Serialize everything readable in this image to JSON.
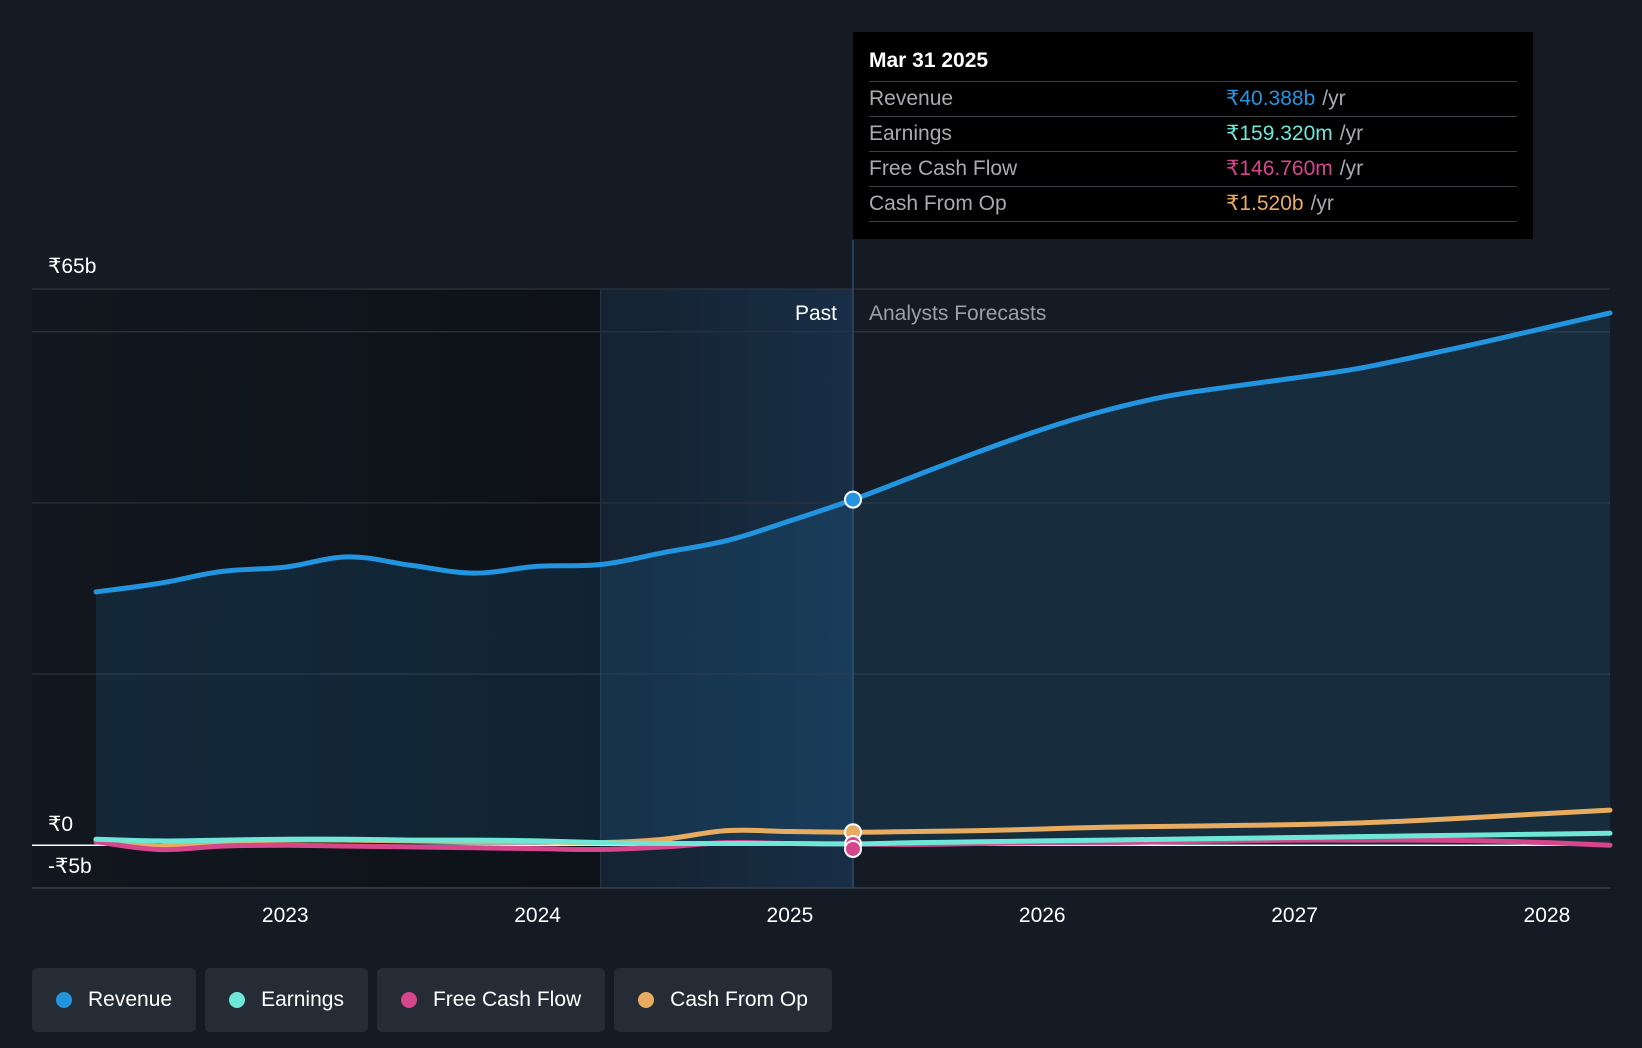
{
  "chart_data": {
    "type": "line",
    "y_axis": {
      "min": -5,
      "max": 65,
      "unit": "₹b",
      "top_label": "₹65b",
      "zero_label": "₹0",
      "bottom_label": "-₹5b"
    },
    "x_axis": {
      "min": 2022.25,
      "max": 2028.25,
      "ticks": [
        "2023",
        "2024",
        "2025",
        "2026",
        "2027",
        "2028"
      ]
    },
    "regions": {
      "past_label": "Past",
      "forecast_label": "Analysts Forecasts",
      "divider_x": 2025.25,
      "highlight_start_x": 2024.25
    },
    "series": [
      {
        "name": "Revenue",
        "color": "#2394df",
        "points": [
          [
            2022.25,
            29.6
          ],
          [
            2022.5,
            30.6
          ],
          [
            2022.75,
            32.0
          ],
          [
            2023.0,
            32.5
          ],
          [
            2023.25,
            33.7
          ],
          [
            2023.5,
            32.7
          ],
          [
            2023.75,
            31.8
          ],
          [
            2024.0,
            32.6
          ],
          [
            2024.25,
            32.8
          ],
          [
            2024.5,
            34.2
          ],
          [
            2024.75,
            35.6
          ],
          [
            2025.0,
            37.9
          ],
          [
            2025.25,
            40.388
          ],
          [
            2025.5,
            43.2
          ],
          [
            2025.75,
            46.0
          ],
          [
            2026.0,
            48.6
          ],
          [
            2026.25,
            50.8
          ],
          [
            2026.5,
            52.5
          ],
          [
            2026.75,
            53.6
          ],
          [
            2027.0,
            54.6
          ],
          [
            2027.25,
            55.7
          ],
          [
            2027.5,
            57.2
          ],
          [
            2027.75,
            58.8
          ],
          [
            2028.0,
            60.5
          ],
          [
            2028.25,
            62.2
          ]
        ]
      },
      {
        "name": "Earnings",
        "color": "#6ee7d8",
        "points": [
          [
            2022.25,
            0.7
          ],
          [
            2022.5,
            0.5
          ],
          [
            2022.75,
            0.6
          ],
          [
            2023.0,
            0.7
          ],
          [
            2023.25,
            0.7
          ],
          [
            2023.5,
            0.6
          ],
          [
            2023.75,
            0.6
          ],
          [
            2024.0,
            0.5
          ],
          [
            2024.25,
            0.3
          ],
          [
            2024.5,
            0.2
          ],
          [
            2024.75,
            0.2
          ],
          [
            2025.0,
            0.2
          ],
          [
            2025.25,
            0.159
          ],
          [
            2025.5,
            0.3
          ],
          [
            2025.75,
            0.4
          ],
          [
            2026.0,
            0.5
          ],
          [
            2026.25,
            0.6
          ],
          [
            2026.5,
            0.7
          ],
          [
            2026.75,
            0.8
          ],
          [
            2027.0,
            0.9
          ],
          [
            2027.25,
            1.0
          ],
          [
            2027.5,
            1.1
          ],
          [
            2027.75,
            1.2
          ],
          [
            2028.0,
            1.3
          ],
          [
            2028.25,
            1.4
          ]
        ]
      },
      {
        "name": "Free Cash Flow",
        "color": "#d6468d",
        "points": [
          [
            2022.25,
            0.4
          ],
          [
            2022.5,
            -0.5
          ],
          [
            2022.75,
            -0.1
          ],
          [
            2023.0,
            0.0
          ],
          [
            2023.25,
            -0.1
          ],
          [
            2023.5,
            -0.2
          ],
          [
            2023.75,
            -0.3
          ],
          [
            2024.0,
            -0.4
          ],
          [
            2024.25,
            -0.5
          ],
          [
            2024.5,
            -0.2
          ],
          [
            2024.75,
            0.3
          ],
          [
            2025.0,
            0.2
          ],
          [
            2025.25,
            0.147
          ],
          [
            2025.5,
            0.1
          ],
          [
            2025.75,
            0.2
          ],
          [
            2026.0,
            0.3
          ],
          [
            2026.25,
            0.3
          ],
          [
            2026.5,
            0.4
          ],
          [
            2026.75,
            0.5
          ],
          [
            2027.0,
            0.6
          ],
          [
            2027.25,
            0.6
          ],
          [
            2027.5,
            0.6
          ],
          [
            2027.75,
            0.5
          ],
          [
            2028.0,
            0.3
          ],
          [
            2028.25,
            0.0
          ]
        ]
      },
      {
        "name": "Cash From Op",
        "color": "#e8ac60",
        "points": [
          [
            2022.25,
            0.6
          ],
          [
            2022.5,
            -0.1
          ],
          [
            2022.75,
            0.4
          ],
          [
            2023.0,
            0.6
          ],
          [
            2023.25,
            0.6
          ],
          [
            2023.5,
            0.5
          ],
          [
            2023.75,
            0.4
          ],
          [
            2024.0,
            0.4
          ],
          [
            2024.25,
            0.3
          ],
          [
            2024.5,
            0.7
          ],
          [
            2024.75,
            1.7
          ],
          [
            2025.0,
            1.6
          ],
          [
            2025.25,
            1.52
          ],
          [
            2025.5,
            1.6
          ],
          [
            2025.75,
            1.7
          ],
          [
            2026.0,
            1.9
          ],
          [
            2026.25,
            2.1
          ],
          [
            2026.5,
            2.2
          ],
          [
            2026.75,
            2.3
          ],
          [
            2027.0,
            2.4
          ],
          [
            2027.25,
            2.6
          ],
          [
            2027.5,
            2.9
          ],
          [
            2027.75,
            3.3
          ],
          [
            2028.0,
            3.7
          ],
          [
            2028.25,
            4.1
          ]
        ]
      }
    ],
    "highlight_x": 2025.25
  },
  "tooltip": {
    "date": "Mar 31 2025",
    "rows": [
      {
        "label": "Revenue",
        "value": "₹40.388b",
        "unit": "/yr",
        "color": "#2394df"
      },
      {
        "label": "Earnings",
        "value": "₹159.320m",
        "unit": "/yr",
        "color": "#6ee7d8"
      },
      {
        "label": "Free Cash Flow",
        "value": "₹146.760m",
        "unit": "/yr",
        "color": "#d6468d"
      },
      {
        "label": "Cash From Op",
        "value": "₹1.520b",
        "unit": "/yr",
        "color": "#e8ac60"
      }
    ]
  },
  "legend": [
    {
      "label": "Revenue",
      "color": "#2394df"
    },
    {
      "label": "Earnings",
      "color": "#6ee7d8"
    },
    {
      "label": "Free Cash Flow",
      "color": "#d6468d"
    },
    {
      "label": "Cash From Op",
      "color": "#e8ac60"
    }
  ]
}
